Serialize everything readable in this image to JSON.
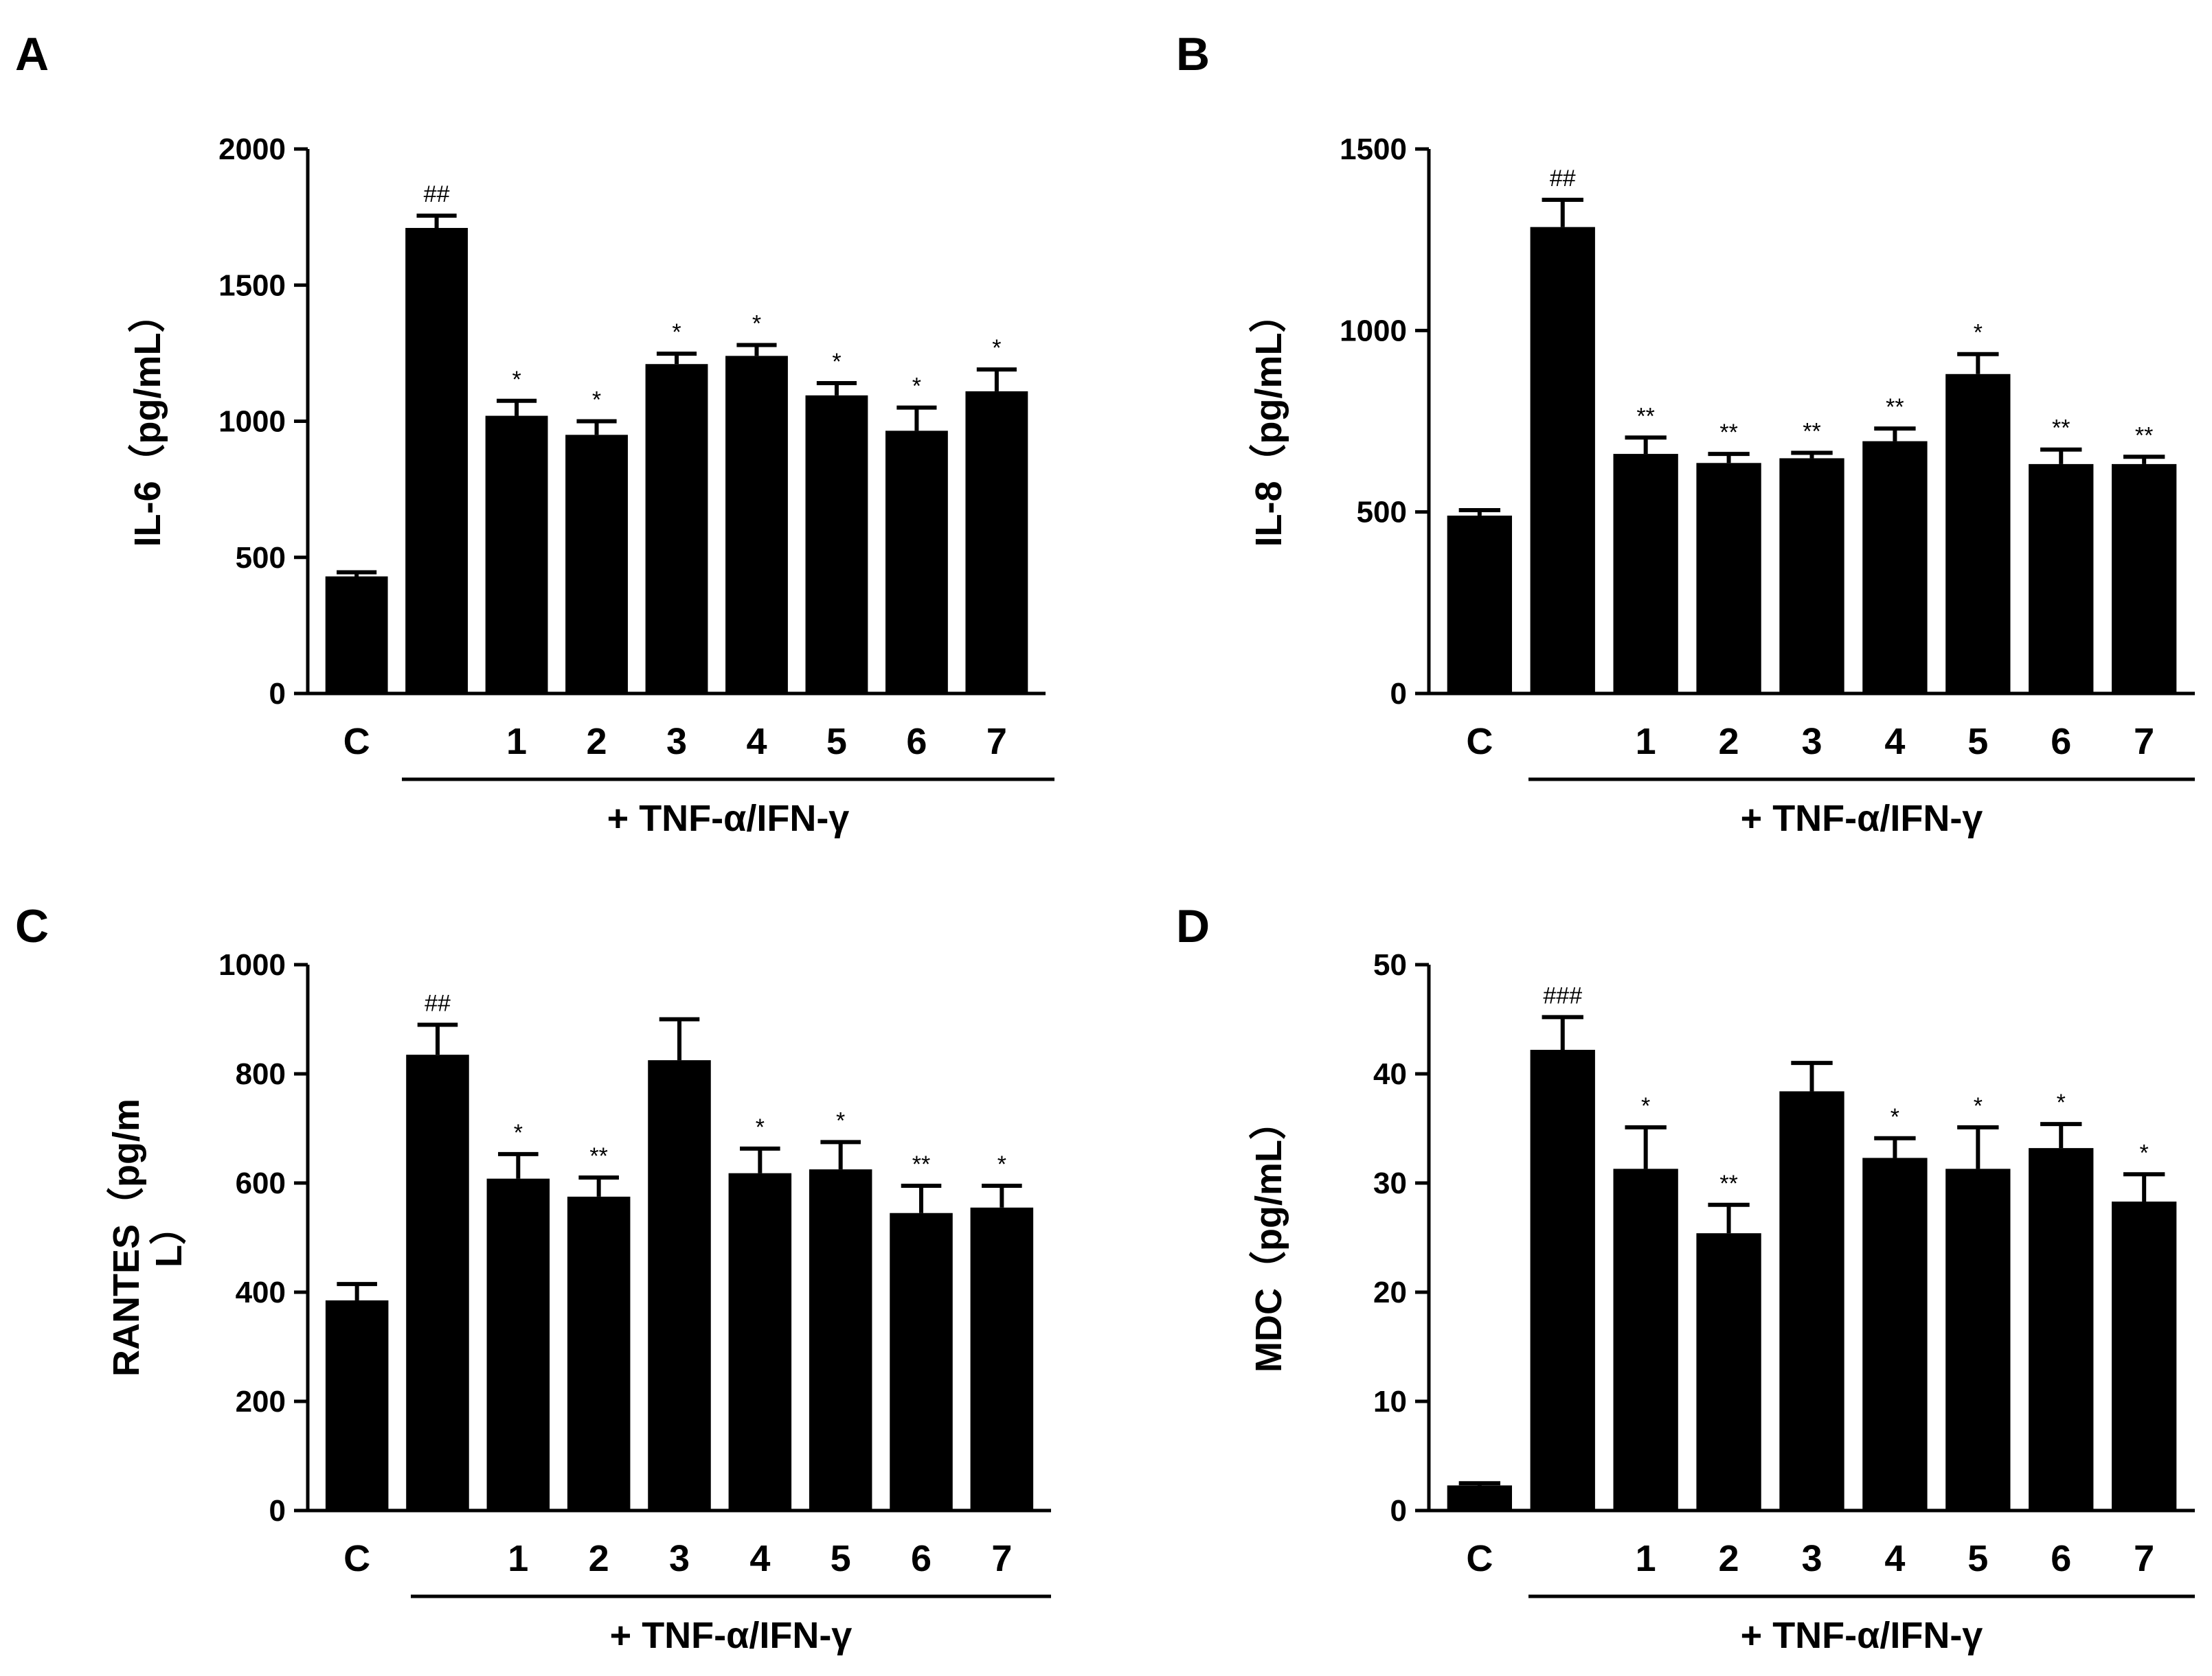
{
  "chart_data": [
    {
      "panel": "A",
      "type": "bar",
      "categories": [
        "C",
        "",
        "1",
        "2",
        "3",
        "4",
        "5",
        "6",
        "7"
      ],
      "values": [
        430,
        1710,
        1020,
        950,
        1210,
        1240,
        1095,
        965,
        1110
      ],
      "errors": [
        15,
        45,
        55,
        50,
        38,
        40,
        45,
        85,
        80
      ],
      "significance": [
        "",
        "##",
        "*",
        "*",
        "*",
        "*",
        "*",
        "*",
        "*"
      ],
      "ylabel_lines": [
        "IL-6（pg/mL）"
      ],
      "ylim": [
        0,
        2000
      ],
      "yticks": [
        0,
        500,
        1000,
        1500,
        2000
      ],
      "treatment_label": "+ TNF-α/IFN-γ"
    },
    {
      "panel": "B",
      "type": "bar",
      "categories": [
        "C",
        "",
        "1",
        "2",
        "3",
        "4",
        "5",
        "6",
        "7"
      ],
      "values": [
        490,
        1285,
        660,
        635,
        648,
        695,
        880,
        632,
        632
      ],
      "errors": [
        15,
        75,
        45,
        25,
        15,
        35,
        55,
        40,
        20
      ],
      "significance": [
        "",
        "##",
        "**",
        "**",
        "**",
        "**",
        "*",
        "**",
        "**"
      ],
      "ylabel_lines": [
        "IL-8（pg/mL）"
      ],
      "ylim": [
        0,
        1500
      ],
      "yticks": [
        0,
        500,
        1000,
        1500
      ],
      "treatment_label": "+ TNF-α/IFN-γ"
    },
    {
      "panel": "C",
      "type": "bar",
      "categories": [
        "C",
        "",
        "1",
        "2",
        "3",
        "4",
        "5",
        "6",
        "7"
      ],
      "values": [
        385,
        835,
        608,
        575,
        825,
        618,
        625,
        545,
        555
      ],
      "errors": [
        30,
        55,
        45,
        35,
        75,
        45,
        50,
        50,
        40
      ],
      "significance": [
        "",
        "##",
        "*",
        "**",
        "",
        "*",
        "*",
        "**",
        "*"
      ],
      "ylabel_lines": [
        "RANTES（pg/m",
        "L）"
      ],
      "ylim": [
        0,
        1000
      ],
      "yticks": [
        0,
        200,
        400,
        600,
        800,
        1000
      ],
      "treatment_label": "+ TNF-α/IFN-γ"
    },
    {
      "panel": "D",
      "type": "bar",
      "categories": [
        "C",
        "",
        "1",
        "2",
        "3",
        "4",
        "5",
        "6",
        "7"
      ],
      "values": [
        2.3,
        42.2,
        31.3,
        25.4,
        38.4,
        32.3,
        31.3,
        33.2,
        28.3
      ],
      "errors": [
        0.2,
        3.0,
        3.8,
        2.6,
        2.6,
        1.8,
        3.8,
        2.2,
        2.5
      ],
      "significance": [
        "",
        "###",
        "*",
        "**",
        "",
        "*",
        "*",
        "*",
        "*"
      ],
      "ylabel_lines": [
        "MDC（pg/mL）"
      ],
      "ylim": [
        0,
        50
      ],
      "yticks": [
        0,
        10,
        20,
        30,
        40,
        50
      ],
      "treatment_label": "+ TNF-α/IFN-γ"
    }
  ]
}
